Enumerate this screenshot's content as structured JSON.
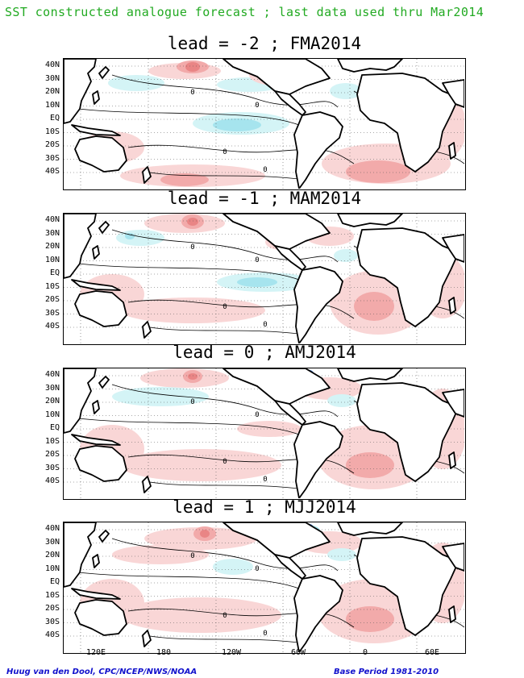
{
  "header": {
    "title": "SST constructed analogue forecast ; last data used thru Mar2014"
  },
  "panels": [
    {
      "title": "lead = -2 ; FMA2014"
    },
    {
      "title": "lead = -1 ; MAM2014"
    },
    {
      "title": "lead = 0 ; AMJ2014"
    },
    {
      "title": "lead = 1 ; MJJ2014"
    }
  ],
  "map": {
    "latitude_labels": [
      "40N",
      "30N",
      "20N",
      "10N",
      "EQ",
      "10S",
      "20S",
      "30S",
      "40S"
    ],
    "longitude_labels": [
      "120E",
      "180",
      "120W",
      "60W",
      "0",
      "60E"
    ],
    "contour_label": "0",
    "colors": {
      "warm_light": "#f9d6d6",
      "warm_mid": "#f2aaaa",
      "warm_strong": "#e98585",
      "cool_light": "#d4f4f6",
      "cool_mid": "#a6e4ee",
      "cool_deep": "#3a78d8",
      "land_outline": "#000000",
      "grid": "#555555"
    }
  },
  "footer": {
    "credit": "Huug van den Dool, CPC/NCEP/NWS/NOAA",
    "base_period": "Base Period 1981-2010"
  }
}
